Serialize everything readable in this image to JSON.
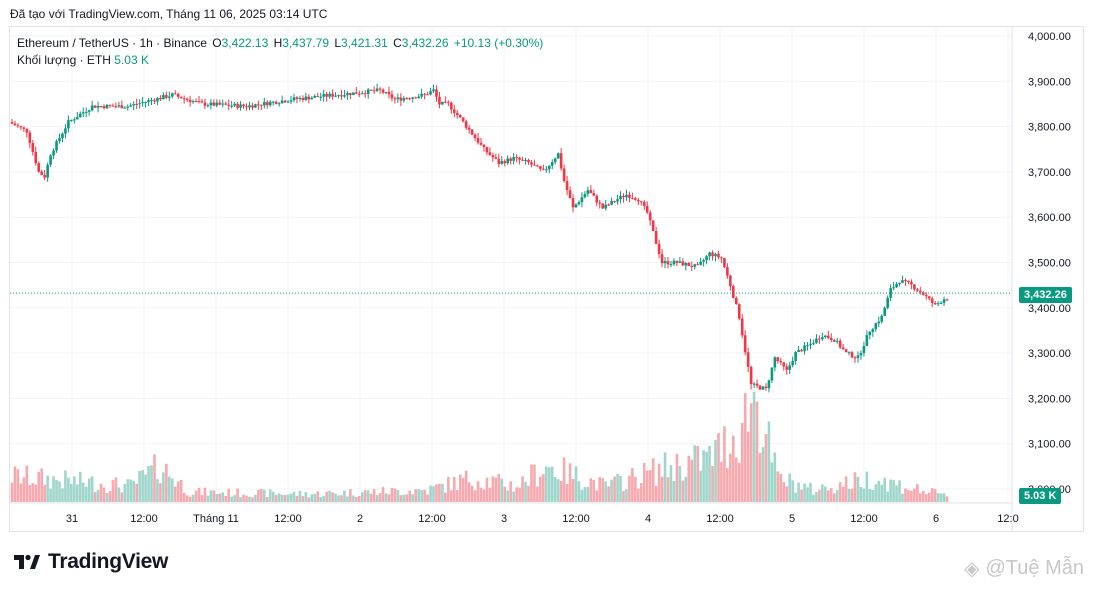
{
  "header": {
    "attribution": "Đã tạo với TradingView.com, Tháng 11 06, 2025 03:14 UTC"
  },
  "legend": {
    "symbol": "Ethereum / TetherUS · 1h · Binance",
    "o_label": "O",
    "o_value": "3,422.13",
    "h_label": "H",
    "h_value": "3,437.79",
    "l_label": "L",
    "l_value": "3,421.31",
    "c_label": "C",
    "c_value": "3,432.26",
    "change": "+10.13 (+0.30%)",
    "volume_label": "Khối lượng · ETH",
    "volume_value": "5.03 K"
  },
  "price_badge": "3,432.26",
  "volume_badge": "5.03 K",
  "footer": {
    "brand": "TradingView",
    "watermark": "@Tuệ Mẫn"
  },
  "colors": {
    "up": "#089981",
    "down": "#f23645",
    "up_vol": "#9fd6cc",
    "down_vol": "#f6a9ae"
  },
  "chart_data": {
    "type": "candlestick",
    "symbol": "Ethereum / TetherUS",
    "interval": "1h",
    "y_axis": {
      "min": 3000,
      "max": 4000,
      "ticks": [
        "4,000.00",
        "3,900.00",
        "3,800.00",
        "3,700.00",
        "3,600.00",
        "3,500.00",
        "3,400.00",
        "3,300.00",
        "3,200.00",
        "3,100.00",
        "3,000.00"
      ],
      "tick_values": [
        4000,
        3900,
        3800,
        3700,
        3600,
        3500,
        3400,
        3300,
        3200,
        3100,
        3000
      ]
    },
    "x_axis": {
      "ticks": [
        "31",
        "12:00",
        "Tháng 11",
        "12:00",
        "2",
        "12:00",
        "3",
        "12:00",
        "4",
        "12:00",
        "5",
        "12:00",
        "6",
        "12:0"
      ],
      "tick_positions": [
        72,
        144,
        216,
        288,
        360,
        432,
        504,
        576,
        648,
        720,
        792,
        864,
        936,
        1008
      ]
    },
    "last_price": 3432.26,
    "anchors": [
      [
        0,
        3810
      ],
      [
        6,
        3790
      ],
      [
        10,
        3700
      ],
      [
        12,
        3690
      ],
      [
        14,
        3740
      ],
      [
        20,
        3810
      ],
      [
        28,
        3845
      ],
      [
        40,
        3845
      ],
      [
        55,
        3870
      ],
      [
        65,
        3850
      ],
      [
        80,
        3845
      ],
      [
        95,
        3860
      ],
      [
        110,
        3870
      ],
      [
        125,
        3880
      ],
      [
        130,
        3860
      ],
      [
        140,
        3870
      ],
      [
        143,
        3880
      ],
      [
        145,
        3850
      ],
      [
        148,
        3850
      ],
      [
        153,
        3810
      ],
      [
        160,
        3750
      ],
      [
        165,
        3720
      ],
      [
        170,
        3730
      ],
      [
        175,
        3720
      ],
      [
        180,
        3700
      ],
      [
        185,
        3740
      ],
      [
        187,
        3680
      ],
      [
        190,
        3620
      ],
      [
        195,
        3660
      ],
      [
        200,
        3620
      ],
      [
        205,
        3640
      ],
      [
        208,
        3650
      ],
      [
        212,
        3640
      ],
      [
        215,
        3610
      ],
      [
        220,
        3500
      ],
      [
        225,
        3500
      ],
      [
        232,
        3490
      ],
      [
        236,
        3520
      ],
      [
        240,
        3510
      ],
      [
        243,
        3450
      ],
      [
        246,
        3380
      ],
      [
        250,
        3230
      ],
      [
        255,
        3220
      ],
      [
        258,
        3290
      ],
      [
        262,
        3260
      ],
      [
        265,
        3300
      ],
      [
        270,
        3320
      ],
      [
        274,
        3340
      ],
      [
        278,
        3330
      ],
      [
        282,
        3300
      ],
      [
        286,
        3290
      ],
      [
        290,
        3350
      ],
      [
        294,
        3380
      ],
      [
        297,
        3440
      ],
      [
        300,
        3460
      ],
      [
        304,
        3450
      ],
      [
        308,
        3430
      ],
      [
        312,
        3405
      ],
      [
        315,
        3420
      ]
    ],
    "volume_anchors": [
      [
        0,
        0.13
      ],
      [
        40,
        0.08
      ],
      [
        50,
        0.18
      ],
      [
        60,
        0.05
      ],
      [
        100,
        0.04
      ],
      [
        140,
        0.06
      ],
      [
        155,
        0.12
      ],
      [
        170,
        0.08
      ],
      [
        180,
        0.18
      ],
      [
        200,
        0.08
      ],
      [
        220,
        0.17
      ],
      [
        235,
        0.22
      ],
      [
        245,
        0.35
      ],
      [
        250,
        0.55
      ],
      [
        258,
        0.12
      ],
      [
        270,
        0.06
      ],
      [
        290,
        0.12
      ],
      [
        300,
        0.08
      ],
      [
        315,
        0.03
      ]
    ]
  }
}
